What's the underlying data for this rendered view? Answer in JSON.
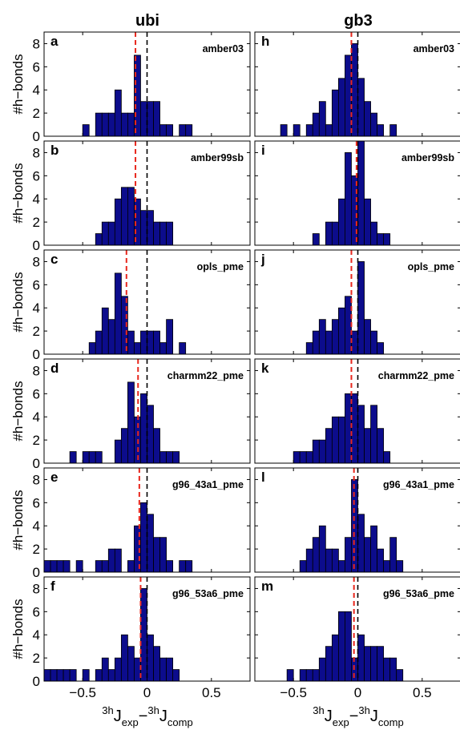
{
  "figure": {
    "column_titles": [
      "ubi",
      "gb3"
    ],
    "ylabel": "#h−bonds",
    "xlabel_parts": {
      "sup1": "3h",
      "base1": "J",
      "sub1": "exp",
      "minus": "−",
      "sup2": "3h",
      "base2": "J",
      "sub2": "comp"
    }
  },
  "colors": {
    "bar_fill": "#0c0c8c",
    "bar_edge": "#000000",
    "red_line": "#e8271d",
    "black_line": "#000000"
  },
  "chart_data": [
    {
      "type": "bar",
      "panel": "a",
      "force_field": "amber03",
      "column": "ubi",
      "bin_width": 0.05,
      "xlim": [
        -0.8,
        0.8
      ],
      "ylim": [
        0,
        9
      ],
      "xticks": [
        -0.5,
        0,
        0.5
      ],
      "xtick_labels": [
        "−0.5",
        "0",
        "0.5"
      ],
      "yticks": [
        0,
        2,
        4,
        6,
        8
      ],
      "ytick_labels": [
        "0",
        "2",
        "4",
        "6",
        "8"
      ],
      "bin_centers": [
        -0.475,
        -0.375,
        -0.325,
        -0.275,
        -0.225,
        -0.175,
        -0.125,
        -0.075,
        -0.025,
        0.025,
        0.075,
        0.125,
        0.175,
        0.275,
        0.325
      ],
      "values": [
        1,
        2,
        2,
        2,
        4,
        2,
        2,
        7,
        3,
        3,
        3,
        1,
        1,
        1,
        1
      ],
      "red_line_x": -0.09,
      "black_line_x": 0.0
    },
    {
      "type": "bar",
      "panel": "b",
      "force_field": "amber99sb",
      "column": "ubi",
      "bin_width": 0.05,
      "xlim": [
        -0.8,
        0.8
      ],
      "ylim": [
        0,
        9
      ],
      "xticks": [
        -0.5,
        0,
        0.5
      ],
      "xtick_labels": [
        "−0.5",
        "0",
        "0.5"
      ],
      "yticks": [
        0,
        2,
        4,
        6,
        8
      ],
      "ytick_labels": [
        "0",
        "2",
        "4",
        "6",
        "8"
      ],
      "bin_centers": [
        -0.375,
        -0.325,
        -0.275,
        -0.225,
        -0.175,
        -0.125,
        -0.075,
        -0.025,
        0.025,
        0.075,
        0.125,
        0.175
      ],
      "values": [
        1,
        2,
        2,
        4,
        5,
        5,
        4,
        3,
        3,
        2,
        2,
        2
      ],
      "red_line_x": -0.09,
      "black_line_x": 0.0
    },
    {
      "type": "bar",
      "panel": "c",
      "force_field": "opls_pme",
      "column": "ubi",
      "bin_width": 0.05,
      "xlim": [
        -0.8,
        0.8
      ],
      "ylim": [
        0,
        9
      ],
      "xticks": [
        -0.5,
        0,
        0.5
      ],
      "xtick_labels": [
        "−0.5",
        "0",
        "0.5"
      ],
      "yticks": [
        0,
        2,
        4,
        6,
        8
      ],
      "ytick_labels": [
        "0",
        "2",
        "4",
        "6",
        "8"
      ],
      "bin_centers": [
        -0.425,
        -0.375,
        -0.325,
        -0.275,
        -0.225,
        -0.175,
        -0.125,
        -0.075,
        -0.025,
        0.025,
        0.075,
        0.125,
        0.175,
        0.275
      ],
      "values": [
        1,
        2,
        4,
        3,
        7,
        5,
        2,
        1,
        2,
        2,
        2,
        1,
        3,
        1
      ],
      "red_line_x": -0.16,
      "black_line_x": 0.0
    },
    {
      "type": "bar",
      "panel": "d",
      "force_field": "charmm22_pme",
      "column": "ubi",
      "bin_width": 0.05,
      "xlim": [
        -0.8,
        0.8
      ],
      "ylim": [
        0,
        9
      ],
      "xticks": [
        -0.5,
        0,
        0.5
      ],
      "xtick_labels": [
        "−0.5",
        "0",
        "0.5"
      ],
      "yticks": [
        0,
        2,
        4,
        6,
        8
      ],
      "ytick_labels": [
        "0",
        "2",
        "4",
        "6",
        "8"
      ],
      "bin_centers": [
        -0.575,
        -0.475,
        -0.425,
        -0.375,
        -0.225,
        -0.175,
        -0.125,
        -0.075,
        -0.025,
        0.025,
        0.075,
        0.125,
        0.175,
        0.225
      ],
      "values": [
        1,
        1,
        1,
        1,
        2,
        3,
        7,
        4,
        6,
        5,
        3,
        1,
        1,
        1
      ],
      "red_line_x": -0.07,
      "black_line_x": 0.0
    },
    {
      "type": "bar",
      "panel": "e",
      "force_field": "g96_43a1_pme",
      "column": "ubi",
      "bin_width": 0.05,
      "xlim": [
        -0.8,
        0.8
      ],
      "ylim": [
        0,
        9
      ],
      "xticks": [
        -0.5,
        0,
        0.5
      ],
      "xtick_labels": [
        "−0.5",
        "0",
        "0.5"
      ],
      "yticks": [
        0,
        2,
        4,
        6,
        8
      ],
      "ytick_labels": [
        "0",
        "2",
        "4",
        "6",
        "8"
      ],
      "bin_centers": [
        -0.775,
        -0.725,
        -0.675,
        -0.625,
        -0.525,
        -0.375,
        -0.325,
        -0.275,
        -0.225,
        -0.125,
        -0.075,
        -0.025,
        0.025,
        0.075,
        0.125,
        0.175,
        0.275,
        0.325
      ],
      "values": [
        1,
        1,
        1,
        1,
        1,
        1,
        1,
        2,
        2,
        1,
        4,
        6,
        5,
        3,
        3,
        1,
        1,
        1
      ],
      "red_line_x": -0.06,
      "black_line_x": 0.0
    },
    {
      "type": "bar",
      "panel": "f",
      "force_field": "g96_53a6_pme",
      "column": "ubi",
      "bin_width": 0.05,
      "xlim": [
        -0.8,
        0.8
      ],
      "ylim": [
        0,
        9
      ],
      "xticks": [
        -0.5,
        0,
        0.5
      ],
      "xtick_labels": [
        "−0.5",
        "0",
        "0.5"
      ],
      "yticks": [
        0,
        2,
        4,
        6,
        8
      ],
      "ytick_labels": [
        "0",
        "2",
        "4",
        "6",
        "8"
      ],
      "bin_centers": [
        -0.775,
        -0.725,
        -0.675,
        -0.625,
        -0.575,
        -0.475,
        -0.375,
        -0.325,
        -0.275,
        -0.225,
        -0.175,
        -0.125,
        -0.075,
        -0.025,
        0.025,
        0.075,
        0.125,
        0.175,
        0.225
      ],
      "values": [
        1,
        1,
        1,
        1,
        1,
        1,
        1,
        2,
        1,
        2,
        4,
        3,
        2,
        8,
        4,
        3,
        2,
        2,
        1
      ],
      "red_line_x": -0.05,
      "black_line_x": 0.0
    },
    {
      "type": "bar",
      "panel": "h",
      "force_field": "amber03",
      "column": "gb3",
      "bin_width": 0.05,
      "xlim": [
        -0.8,
        0.8
      ],
      "ylim": [
        0,
        9
      ],
      "xticks": [
        -0.5,
        0,
        0.5
      ],
      "xtick_labels": [
        "−0.5",
        "0",
        "0.5"
      ],
      "yticks": [
        0,
        2,
        4,
        6,
        8
      ],
      "ytick_labels": [
        "0",
        "2",
        "4",
        "6",
        "8"
      ],
      "bin_centers": [
        -0.575,
        -0.475,
        -0.375,
        -0.325,
        -0.275,
        -0.225,
        -0.175,
        -0.125,
        -0.075,
        -0.025,
        0.025,
        0.075,
        0.125,
        0.175,
        0.275
      ],
      "values": [
        1,
        1,
        1,
        2,
        3,
        1,
        4,
        5,
        7,
        8,
        5,
        3,
        2,
        1,
        1
      ],
      "red_line_x": -0.05,
      "black_line_x": 0.0
    },
    {
      "type": "bar",
      "panel": "i",
      "force_field": "amber99sb",
      "column": "gb3",
      "bin_width": 0.05,
      "xlim": [
        -0.8,
        0.8
      ],
      "ylim": [
        0,
        9
      ],
      "xticks": [
        -0.5,
        0,
        0.5
      ],
      "xtick_labels": [
        "−0.5",
        "0",
        "0.5"
      ],
      "yticks": [
        0,
        2,
        4,
        6,
        8
      ],
      "ytick_labels": [
        "0",
        "2",
        "4",
        "6",
        "8"
      ],
      "bin_centers": [
        -0.325,
        -0.225,
        -0.175,
        -0.125,
        -0.075,
        -0.025,
        0.025,
        0.075,
        0.125,
        0.175,
        0.225
      ],
      "values": [
        1,
        2,
        2,
        4,
        8,
        6,
        9,
        4,
        2,
        1,
        1
      ],
      "red_line_x": -0.01,
      "black_line_x": 0.0
    },
    {
      "type": "bar",
      "panel": "j",
      "force_field": "opls_pme",
      "column": "gb3",
      "bin_width": 0.05,
      "xlim": [
        -0.8,
        0.8
      ],
      "ylim": [
        0,
        9
      ],
      "xticks": [
        -0.5,
        0,
        0.5
      ],
      "xtick_labels": [
        "−0.5",
        "0",
        "0.5"
      ],
      "yticks": [
        0,
        2,
        4,
        6,
        8
      ],
      "ytick_labels": [
        "0",
        "2",
        "4",
        "6",
        "8"
      ],
      "bin_centers": [
        -0.375,
        -0.325,
        -0.275,
        -0.225,
        -0.175,
        -0.125,
        -0.075,
        -0.025,
        0.025,
        0.075,
        0.125,
        0.175
      ],
      "values": [
        1,
        2,
        3,
        2,
        3,
        4,
        5,
        2,
        8,
        3,
        2,
        1
      ],
      "red_line_x": -0.05,
      "black_line_x": 0.0
    },
    {
      "type": "bar",
      "panel": "k",
      "force_field": "charmm22_pme",
      "column": "gb3",
      "bin_width": 0.05,
      "xlim": [
        -0.8,
        0.8
      ],
      "ylim": [
        0,
        9
      ],
      "xticks": [
        -0.5,
        0,
        0.5
      ],
      "xtick_labels": [
        "−0.5",
        "0",
        "0.5"
      ],
      "yticks": [
        0,
        2,
        4,
        6,
        8
      ],
      "ytick_labels": [
        "0",
        "2",
        "4",
        "6",
        "8"
      ],
      "bin_centers": [
        -0.475,
        -0.425,
        -0.375,
        -0.325,
        -0.275,
        -0.225,
        -0.175,
        -0.125,
        -0.075,
        -0.025,
        0.025,
        0.075,
        0.125,
        0.175,
        0.225
      ],
      "values": [
        1,
        1,
        1,
        2,
        2,
        3,
        4,
        4,
        6,
        6,
        5,
        3,
        5,
        3,
        1
      ],
      "red_line_x": -0.05,
      "black_line_x": 0.0
    },
    {
      "type": "bar",
      "panel": "l",
      "force_field": "g96_43a1_pme",
      "column": "gb3",
      "bin_width": 0.05,
      "xlim": [
        -0.8,
        0.8
      ],
      "ylim": [
        0,
        9
      ],
      "xticks": [
        -0.5,
        0,
        0.5
      ],
      "xtick_labels": [
        "−0.5",
        "0",
        "0.5"
      ],
      "yticks": [
        0,
        2,
        4,
        6,
        8
      ],
      "ytick_labels": [
        "0",
        "2",
        "4",
        "6",
        "8"
      ],
      "bin_centers": [
        -0.425,
        -0.375,
        -0.325,
        -0.275,
        -0.225,
        -0.175,
        -0.125,
        -0.075,
        -0.025,
        0.025,
        0.075,
        0.125,
        0.175,
        0.225,
        0.275,
        0.325
      ],
      "values": [
        1,
        2,
        3,
        4,
        2,
        2,
        1,
        3,
        8,
        5,
        3,
        4,
        2,
        1,
        3,
        1
      ],
      "red_line_x": -0.03,
      "black_line_x": 0.0
    },
    {
      "type": "bar",
      "panel": "m",
      "force_field": "g96_53a6_pme",
      "column": "gb3",
      "bin_width": 0.05,
      "xlim": [
        -0.8,
        0.8
      ],
      "ylim": [
        0,
        9
      ],
      "xticks": [
        -0.5,
        0,
        0.5
      ],
      "xtick_labels": [
        "−0.5",
        "0",
        "0.5"
      ],
      "yticks": [
        0,
        2,
        4,
        6,
        8
      ],
      "ytick_labels": [
        "0",
        "2",
        "4",
        "6",
        "8"
      ],
      "bin_centers": [
        -0.525,
        -0.425,
        -0.375,
        -0.325,
        -0.275,
        -0.225,
        -0.175,
        -0.125,
        -0.075,
        -0.025,
        0.025,
        0.075,
        0.125,
        0.175,
        0.225,
        0.275,
        0.325
      ],
      "values": [
        1,
        1,
        1,
        1,
        2,
        3,
        4,
        6,
        6,
        2,
        4,
        3,
        3,
        3,
        2,
        2,
        1
      ],
      "red_line_x": -0.03,
      "black_line_x": 0.0
    }
  ]
}
